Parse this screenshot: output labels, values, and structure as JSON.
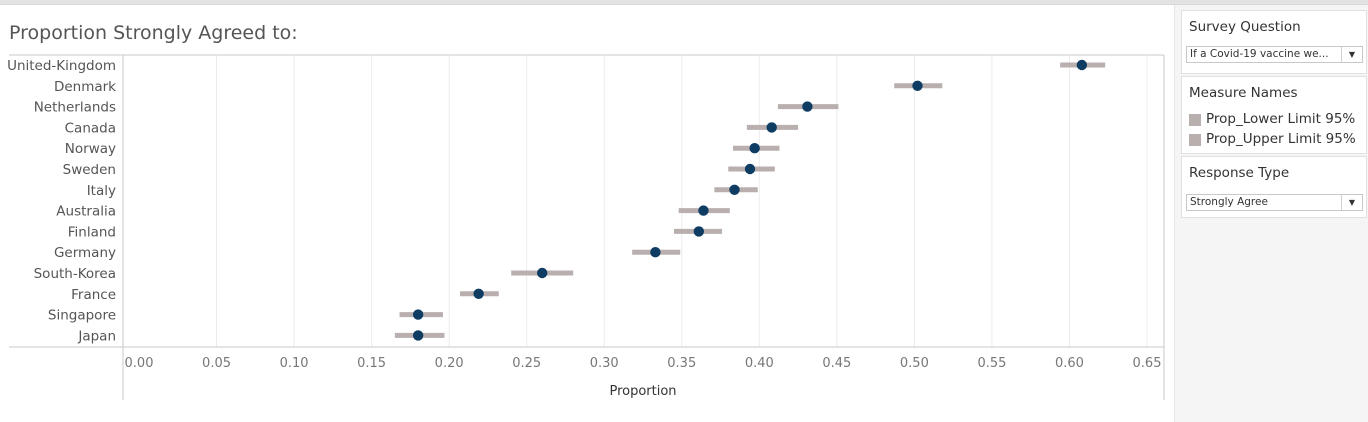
{
  "chart_data": {
    "type": "dot-interval",
    "title": "Proportion Strongly Agreed to:",
    "xlabel": "Proportion",
    "ylabel": "",
    "xlim": [
      0,
      0.65
    ],
    "xticks": [
      "0.00",
      "0.05",
      "0.10",
      "0.15",
      "0.20",
      "0.25",
      "0.30",
      "0.35",
      "0.40",
      "0.45",
      "0.50",
      "0.55",
      "0.60",
      "0.65"
    ],
    "grid": true,
    "categories": [
      "United-Kingdom",
      "Denmark",
      "Netherlands",
      "Canada",
      "Norway",
      "Sweden",
      "Italy",
      "Australia",
      "Finland",
      "Germany",
      "South-Korea",
      "France",
      "Singapore",
      "Japan"
    ],
    "series": [
      {
        "name": "Prop_Lower Limit 95%",
        "values": [
          0.594,
          0.487,
          0.412,
          0.392,
          0.383,
          0.38,
          0.371,
          0.348,
          0.345,
          0.318,
          0.24,
          0.207,
          0.168,
          0.165
        ]
      },
      {
        "name": "Prop_Upper Limit 95%",
        "values": [
          0.623,
          0.518,
          0.451,
          0.425,
          0.413,
          0.41,
          0.399,
          0.381,
          0.376,
          0.349,
          0.28,
          0.232,
          0.196,
          0.197
        ]
      },
      {
        "values": [
          0.608,
          0.502,
          0.431,
          0.408,
          0.397,
          0.394,
          0.384,
          0.364,
          0.361,
          0.333,
          0.26,
          0.219,
          0.18,
          0.18
        ]
      }
    ],
    "colors": {
      "interval": "#b8afae",
      "point": "#0f3c63",
      "grid": "#ececec",
      "axis": "#c8c8c8"
    }
  },
  "filters": {
    "survey_question": {
      "title": "Survey Question",
      "value": "If a Covid-19 vaccine we..."
    },
    "measure_names": {
      "title": "Measure Names",
      "items": [
        {
          "label": "Prop_Lower Limit 95%",
          "color": "#b8afae"
        },
        {
          "label": "Prop_Upper Limit 95%",
          "color": "#b8afae"
        }
      ]
    },
    "response_type": {
      "title": "Response Type",
      "value": "Strongly Agree"
    }
  },
  "icons": {
    "dropdown": "chevron-down-icon"
  }
}
